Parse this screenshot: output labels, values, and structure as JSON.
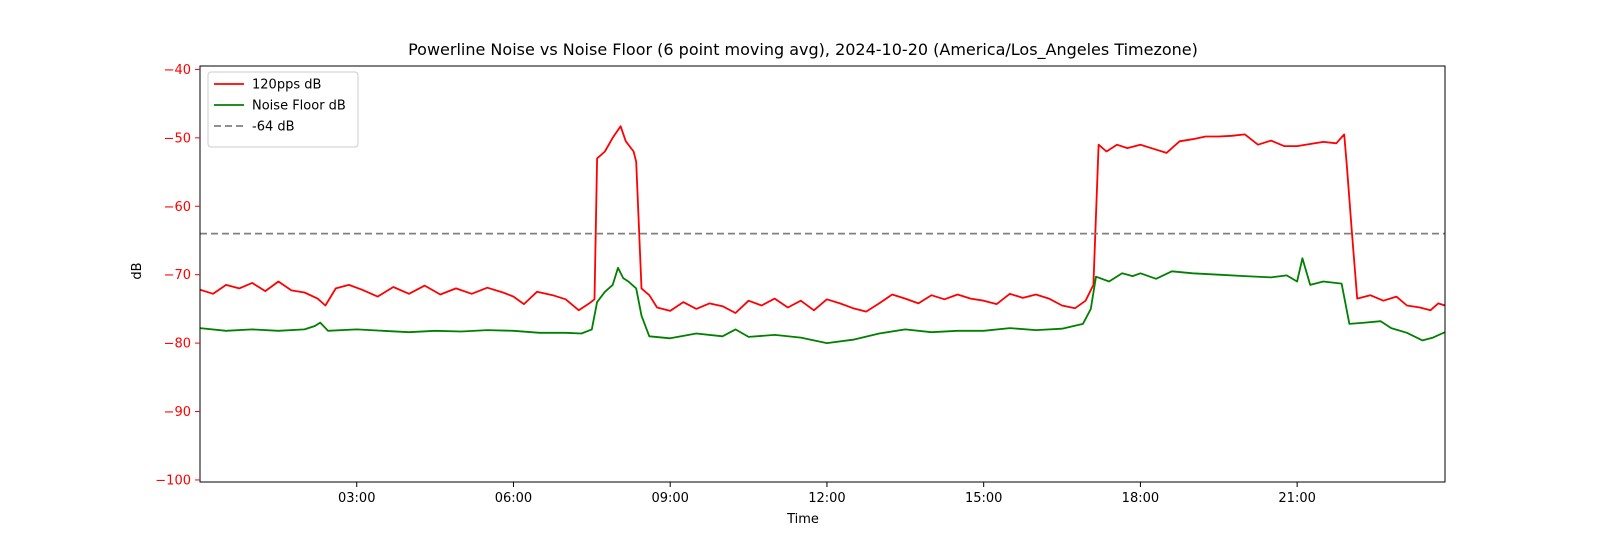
{
  "chart_data": {
    "type": "line",
    "title": "Powerline Noise vs Noise Floor (6 point moving avg), 2024-10-20 (America/Los_Angeles Timezone)",
    "xlabel": "Time",
    "ylabel": "dB",
    "x_unit": "hours of day",
    "xlim": [
      0,
      23.83
    ],
    "ylim": [
      -100.3,
      -39.5
    ],
    "x_ticks": [
      {
        "value": 3,
        "label": "03:00"
      },
      {
        "value": 6,
        "label": "06:00"
      },
      {
        "value": 9,
        "label": "09:00"
      },
      {
        "value": 12,
        "label": "12:00"
      },
      {
        "value": 15,
        "label": "15:00"
      },
      {
        "value": 18,
        "label": "18:00"
      },
      {
        "value": 21,
        "label": "21:00"
      }
    ],
    "y_ticks": [
      {
        "value": -40,
        "label": "−40"
      },
      {
        "value": -50,
        "label": "−50"
      },
      {
        "value": -60,
        "label": "−60"
      },
      {
        "value": -70,
        "label": "−70"
      },
      {
        "value": -80,
        "label": "−80"
      },
      {
        "value": -90,
        "label": "−90"
      },
      {
        "value": -100,
        "label": "−100"
      }
    ],
    "y_axis_color": "#ff0000",
    "legend_position": "top-left",
    "grid": false,
    "series": [
      {
        "name": "120pps dB",
        "color": "#ff0000",
        "style": "solid",
        "points": [
          [
            0.0,
            -72.2
          ],
          [
            0.25,
            -72.8
          ],
          [
            0.5,
            -71.5
          ],
          [
            0.75,
            -72.0
          ],
          [
            1.0,
            -71.2
          ],
          [
            1.25,
            -72.4
          ],
          [
            1.5,
            -71.0
          ],
          [
            1.75,
            -72.3
          ],
          [
            2.0,
            -72.6
          ],
          [
            2.25,
            -73.5
          ],
          [
            2.4,
            -74.5
          ],
          [
            2.6,
            -72.0
          ],
          [
            2.85,
            -71.5
          ],
          [
            3.1,
            -72.2
          ],
          [
            3.4,
            -73.2
          ],
          [
            3.7,
            -71.8
          ],
          [
            4.0,
            -72.8
          ],
          [
            4.3,
            -71.6
          ],
          [
            4.6,
            -72.9
          ],
          [
            4.9,
            -72.0
          ],
          [
            5.2,
            -72.8
          ],
          [
            5.5,
            -71.9
          ],
          [
            5.8,
            -72.6
          ],
          [
            6.0,
            -73.2
          ],
          [
            6.2,
            -74.3
          ],
          [
            6.45,
            -72.5
          ],
          [
            6.75,
            -73.0
          ],
          [
            7.0,
            -73.6
          ],
          [
            7.25,
            -75.2
          ],
          [
            7.45,
            -74.2
          ],
          [
            7.55,
            -73.6
          ],
          [
            7.6,
            -53.0
          ],
          [
            7.75,
            -52.0
          ],
          [
            7.9,
            -50.0
          ],
          [
            8.05,
            -48.3
          ],
          [
            8.15,
            -50.5
          ],
          [
            8.3,
            -52.0
          ],
          [
            8.35,
            -53.5
          ],
          [
            8.45,
            -72.0
          ],
          [
            8.6,
            -73.0
          ],
          [
            8.75,
            -74.8
          ],
          [
            9.0,
            -75.3
          ],
          [
            9.25,
            -74.0
          ],
          [
            9.5,
            -75.0
          ],
          [
            9.75,
            -74.2
          ],
          [
            10.0,
            -74.6
          ],
          [
            10.25,
            -75.6
          ],
          [
            10.5,
            -73.8
          ],
          [
            10.75,
            -74.5
          ],
          [
            11.0,
            -73.5
          ],
          [
            11.25,
            -74.8
          ],
          [
            11.5,
            -73.8
          ],
          [
            11.75,
            -75.2
          ],
          [
            12.0,
            -73.6
          ],
          [
            12.25,
            -74.2
          ],
          [
            12.5,
            -74.9
          ],
          [
            12.75,
            -75.4
          ],
          [
            13.0,
            -74.2
          ],
          [
            13.25,
            -72.9
          ],
          [
            13.5,
            -73.5
          ],
          [
            13.75,
            -74.2
          ],
          [
            14.0,
            -73.0
          ],
          [
            14.25,
            -73.6
          ],
          [
            14.5,
            -72.9
          ],
          [
            14.75,
            -73.5
          ],
          [
            15.0,
            -73.8
          ],
          [
            15.25,
            -74.3
          ],
          [
            15.5,
            -72.8
          ],
          [
            15.75,
            -73.4
          ],
          [
            16.0,
            -72.9
          ],
          [
            16.25,
            -73.5
          ],
          [
            16.5,
            -74.5
          ],
          [
            16.75,
            -74.9
          ],
          [
            16.95,
            -73.8
          ],
          [
            17.1,
            -71.5
          ],
          [
            17.2,
            -51.0
          ],
          [
            17.35,
            -52.0
          ],
          [
            17.55,
            -51.0
          ],
          [
            17.75,
            -51.5
          ],
          [
            18.0,
            -51.0
          ],
          [
            18.25,
            -51.6
          ],
          [
            18.5,
            -52.2
          ],
          [
            18.75,
            -50.5
          ],
          [
            19.0,
            -50.2
          ],
          [
            19.25,
            -49.8
          ],
          [
            19.5,
            -49.8
          ],
          [
            19.75,
            -49.7
          ],
          [
            20.0,
            -49.5
          ],
          [
            20.25,
            -51.0
          ],
          [
            20.5,
            -50.4
          ],
          [
            20.75,
            -51.2
          ],
          [
            21.0,
            -51.2
          ],
          [
            21.25,
            -50.9
          ],
          [
            21.5,
            -50.6
          ],
          [
            21.75,
            -50.8
          ],
          [
            21.9,
            -49.5
          ],
          [
            21.95,
            -54.0
          ],
          [
            22.05,
            -64.0
          ],
          [
            22.15,
            -73.5
          ],
          [
            22.4,
            -73.0
          ],
          [
            22.65,
            -73.8
          ],
          [
            22.9,
            -73.2
          ],
          [
            23.1,
            -74.5
          ],
          [
            23.35,
            -74.8
          ],
          [
            23.55,
            -75.2
          ],
          [
            23.7,
            -74.2
          ],
          [
            23.83,
            -74.5
          ]
        ]
      },
      {
        "name": "Noise Floor dB",
        "color": "#008000",
        "style": "solid",
        "points": [
          [
            0.0,
            -77.8
          ],
          [
            0.5,
            -78.2
          ],
          [
            1.0,
            -78.0
          ],
          [
            1.5,
            -78.2
          ],
          [
            2.0,
            -78.0
          ],
          [
            2.2,
            -77.5
          ],
          [
            2.3,
            -77.0
          ],
          [
            2.45,
            -78.2
          ],
          [
            3.0,
            -78.0
          ],
          [
            3.5,
            -78.2
          ],
          [
            4.0,
            -78.4
          ],
          [
            4.5,
            -78.2
          ],
          [
            5.0,
            -78.3
          ],
          [
            5.5,
            -78.1
          ],
          [
            6.0,
            -78.2
          ],
          [
            6.5,
            -78.5
          ],
          [
            7.0,
            -78.5
          ],
          [
            7.3,
            -78.6
          ],
          [
            7.5,
            -78.0
          ],
          [
            7.6,
            -74.0
          ],
          [
            7.75,
            -72.5
          ],
          [
            7.9,
            -71.5
          ],
          [
            8.0,
            -69.0
          ],
          [
            8.1,
            -70.5
          ],
          [
            8.2,
            -71.0
          ],
          [
            8.35,
            -72.0
          ],
          [
            8.45,
            -76.0
          ],
          [
            8.6,
            -79.0
          ],
          [
            9.0,
            -79.3
          ],
          [
            9.5,
            -78.6
          ],
          [
            10.0,
            -79.0
          ],
          [
            10.25,
            -78.0
          ],
          [
            10.5,
            -79.1
          ],
          [
            11.0,
            -78.8
          ],
          [
            11.5,
            -79.2
          ],
          [
            12.0,
            -80.0
          ],
          [
            12.5,
            -79.5
          ],
          [
            13.0,
            -78.6
          ],
          [
            13.5,
            -78.0
          ],
          [
            14.0,
            -78.4
          ],
          [
            14.5,
            -78.2
          ],
          [
            15.0,
            -78.2
          ],
          [
            15.5,
            -77.8
          ],
          [
            16.0,
            -78.1
          ],
          [
            16.5,
            -77.9
          ],
          [
            16.9,
            -77.2
          ],
          [
            17.05,
            -75.0
          ],
          [
            17.15,
            -70.3
          ],
          [
            17.4,
            -71.0
          ],
          [
            17.65,
            -69.8
          ],
          [
            17.85,
            -70.2
          ],
          [
            18.0,
            -69.8
          ],
          [
            18.3,
            -70.6
          ],
          [
            18.6,
            -69.5
          ],
          [
            19.0,
            -69.8
          ],
          [
            19.5,
            -70.0
          ],
          [
            20.0,
            -70.2
          ],
          [
            20.5,
            -70.4
          ],
          [
            20.8,
            -70.1
          ],
          [
            21.0,
            -71.0
          ],
          [
            21.1,
            -67.6
          ],
          [
            21.25,
            -71.5
          ],
          [
            21.5,
            -71.0
          ],
          [
            21.85,
            -71.3
          ],
          [
            22.0,
            -77.2
          ],
          [
            22.3,
            -77.0
          ],
          [
            22.6,
            -76.8
          ],
          [
            22.8,
            -77.8
          ],
          [
            23.1,
            -78.5
          ],
          [
            23.4,
            -79.6
          ],
          [
            23.6,
            -79.2
          ],
          [
            23.83,
            -78.4
          ]
        ]
      },
      {
        "name": "-64 dB",
        "color": "#808080",
        "style": "dashed",
        "points": [
          [
            0.0,
            -64.0
          ],
          [
            23.83,
            -64.0
          ]
        ]
      }
    ]
  }
}
